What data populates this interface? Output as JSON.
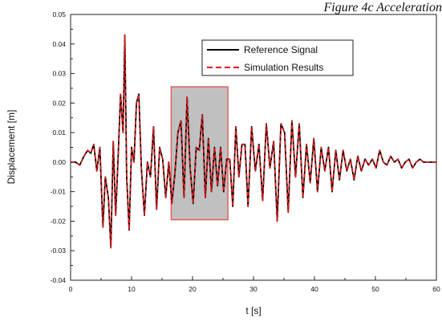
{
  "caption": "Figure 4c Acceleration",
  "chart_data": {
    "type": "line",
    "xlabel": "t [s]",
    "ylabel": "Displacement [m]",
    "xlim": [
      0,
      60
    ],
    "ylim": [
      -0.04,
      0.05
    ],
    "x_ticks": [
      0,
      10,
      20,
      30,
      40,
      50,
      60
    ],
    "y_ticks": [
      -0.04,
      -0.03,
      -0.02,
      -0.01,
      0.0,
      0.01,
      0.02,
      0.03,
      0.04,
      0.05
    ],
    "y_tick_labels": [
      "-0.04",
      "-0.03",
      "-0.02",
      "-0.01",
      "0.00",
      "0.01",
      "0.02",
      "0.03",
      "0.04",
      "0.05"
    ],
    "grid": false,
    "legend_position": "top-right",
    "highlight_region": {
      "x": [
        16.5,
        25.8
      ],
      "y": [
        -0.0195,
        0.0255
      ],
      "fill": "#c0c0c0",
      "stroke": "#e06060"
    },
    "series": [
      {
        "name": "Reference Signal",
        "color": "#000000",
        "style": "solid",
        "x": [
          0,
          0.8,
          1.5,
          2.2,
          2.8,
          3.3,
          3.8,
          4.3,
          4.8,
          5.3,
          5.7,
          6.2,
          6.6,
          7.0,
          7.4,
          7.8,
          8.2,
          8.6,
          8.9,
          9.2,
          9.6,
          10.0,
          10.4,
          10.8,
          11.2,
          11.6,
          12.1,
          12.6,
          13.1,
          13.6,
          14.1,
          14.6,
          15.1,
          15.6,
          16.1,
          16.6,
          17.1,
          17.6,
          18.1,
          18.6,
          19.1,
          19.6,
          20.1,
          20.6,
          21.1,
          21.6,
          22.1,
          22.6,
          23.1,
          23.6,
          24.1,
          24.6,
          25.1,
          25.6,
          26.1,
          26.6,
          27.1,
          27.6,
          28.1,
          28.6,
          29.1,
          29.7,
          30.3,
          30.9,
          31.5,
          32.1,
          32.7,
          33.3,
          33.9,
          34.5,
          35.1,
          35.7,
          36.3,
          36.9,
          37.5,
          38.1,
          38.7,
          39.3,
          39.9,
          40.5,
          41.1,
          41.7,
          42.3,
          42.9,
          43.5,
          44.1,
          44.7,
          45.3,
          45.9,
          46.5,
          47.1,
          47.7,
          48.3,
          48.9,
          49.5,
          50.1,
          50.7,
          51.3,
          51.9,
          52.5,
          53.1,
          53.7,
          54.3,
          54.9,
          55.5,
          56.1,
          56.7,
          57.3,
          57.9,
          58.5,
          59.1,
          60.0
        ],
        "y": [
          0.0,
          0.0,
          -0.001,
          0.002,
          0.004,
          0.003,
          0.006,
          -0.003,
          0.005,
          -0.022,
          -0.005,
          -0.012,
          -0.029,
          0.007,
          -0.018,
          0.002,
          0.023,
          0.01,
          0.043,
          -0.005,
          -0.023,
          0.005,
          0.0,
          0.02,
          0.023,
          -0.002,
          -0.018,
          0.0,
          -0.005,
          0.012,
          -0.016,
          0.005,
          0.001,
          -0.012,
          0.0,
          -0.014,
          -0.004,
          0.01,
          0.014,
          -0.012,
          0.022,
          -0.002,
          -0.014,
          0.005,
          0.004,
          0.016,
          -0.012,
          0.008,
          -0.01,
          0.005,
          -0.008,
          0.005,
          -0.01,
          0.001,
          0.001,
          -0.015,
          0.012,
          -0.005,
          0.006,
          0.006,
          -0.015,
          0.012,
          -0.003,
          0.006,
          -0.013,
          0.013,
          -0.002,
          0.007,
          -0.02,
          0.013,
          0.01,
          -0.017,
          0.014,
          -0.005,
          0.013,
          -0.012,
          0.006,
          -0.007,
          0.008,
          -0.01,
          0.005,
          -0.003,
          0.005,
          -0.01,
          0.004,
          -0.006,
          0.004,
          -0.003,
          0.001,
          -0.006,
          0.002,
          -0.003,
          0.001,
          -0.001,
          0.001,
          -0.002,
          0.004,
          0.0,
          -0.001,
          0.002,
          0.0,
          0.001,
          -0.002,
          0.0,
          0.001,
          -0.002,
          0.0,
          0.001,
          0.0,
          0.0,
          0.0,
          0.0
        ]
      },
      {
        "name": "Simulation Results",
        "color": "#e01818",
        "style": "dashed",
        "x": [
          0,
          0.8,
          1.5,
          2.2,
          2.8,
          3.3,
          3.8,
          4.3,
          4.8,
          5.3,
          5.7,
          6.2,
          6.6,
          7.0,
          7.4,
          7.8,
          8.2,
          8.6,
          8.9,
          9.2,
          9.6,
          10.0,
          10.4,
          10.8,
          11.2,
          11.6,
          12.1,
          12.6,
          13.1,
          13.6,
          14.1,
          14.6,
          15.1,
          15.6,
          16.1,
          16.6,
          17.1,
          17.6,
          18.1,
          18.6,
          19.1,
          19.6,
          20.1,
          20.6,
          21.1,
          21.6,
          22.1,
          22.6,
          23.1,
          23.6,
          24.1,
          24.6,
          25.1,
          25.6,
          26.1,
          26.6,
          27.1,
          27.6,
          28.1,
          28.6,
          29.1,
          29.7,
          30.3,
          30.9,
          31.5,
          32.1,
          32.7,
          33.3,
          33.9,
          34.5,
          35.1,
          35.7,
          36.3,
          36.9,
          37.5,
          38.1,
          38.7,
          39.3,
          39.9,
          40.5,
          41.1,
          41.7,
          42.3,
          42.9,
          43.5,
          44.1,
          44.7,
          45.3,
          45.9,
          46.5,
          47.1,
          47.7,
          48.3,
          48.9,
          49.5,
          50.1,
          50.7,
          51.3,
          51.9,
          52.5,
          53.1,
          53.7,
          54.3,
          54.9,
          55.5,
          56.1,
          56.7,
          57.3,
          57.9,
          58.5,
          59.1,
          60.0
        ],
        "y": [
          0.0,
          0.0,
          -0.001,
          0.002,
          0.004,
          0.003,
          0.006,
          -0.003,
          0.005,
          -0.022,
          -0.005,
          -0.012,
          -0.029,
          0.007,
          -0.018,
          0.002,
          0.023,
          0.01,
          0.043,
          -0.005,
          -0.023,
          0.005,
          0.0,
          0.02,
          0.023,
          -0.002,
          -0.018,
          0.0,
          -0.005,
          0.012,
          -0.016,
          0.005,
          0.001,
          -0.012,
          0.0,
          -0.014,
          -0.004,
          0.01,
          0.014,
          -0.012,
          0.022,
          -0.002,
          -0.014,
          0.005,
          0.004,
          0.016,
          -0.012,
          0.008,
          -0.01,
          0.005,
          -0.008,
          0.005,
          -0.01,
          0.001,
          0.001,
          -0.015,
          0.012,
          -0.005,
          0.006,
          0.006,
          -0.015,
          0.012,
          -0.003,
          0.006,
          -0.013,
          0.013,
          -0.002,
          0.007,
          -0.02,
          0.013,
          0.01,
          -0.017,
          0.014,
          -0.005,
          0.013,
          -0.012,
          0.006,
          -0.007,
          0.008,
          -0.01,
          0.005,
          -0.003,
          0.005,
          -0.01,
          0.004,
          -0.006,
          0.004,
          -0.003,
          0.001,
          -0.006,
          0.002,
          -0.003,
          0.001,
          -0.001,
          0.001,
          -0.002,
          0.004,
          0.0,
          -0.001,
          0.002,
          0.0,
          0.001,
          -0.002,
          0.0,
          0.001,
          -0.002,
          0.0,
          0.001,
          0.0,
          0.0,
          0.0,
          0.0
        ]
      }
    ]
  }
}
